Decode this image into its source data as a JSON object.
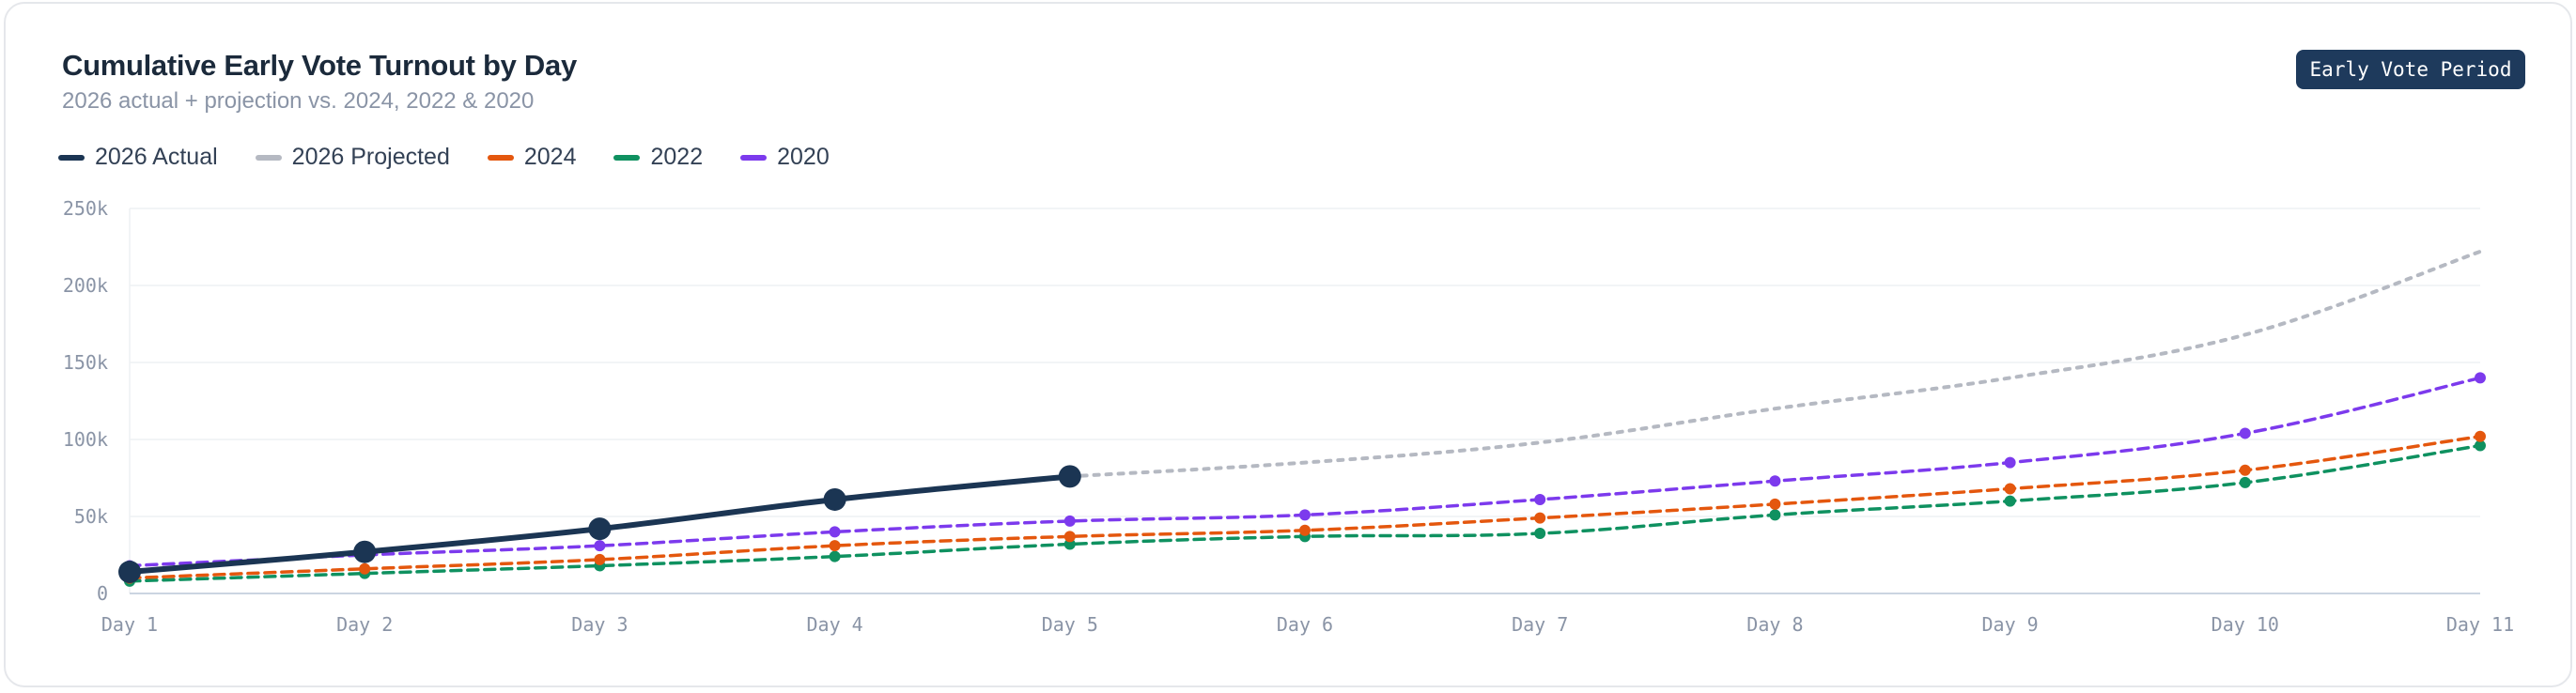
{
  "header": {
    "title": "Cumulative Early Vote Turnout by Day",
    "subtitle": "2026 actual + projection vs. 2024, 2022 & 2020",
    "badge": "Early Vote Period"
  },
  "colors": {
    "actual_2026": "#1b3553",
    "projected_2026": "#b5b9c2",
    "y2024": "#e4570e",
    "y2022": "#0f9160",
    "y2020": "#7c3aed",
    "grid": "#eef0f3",
    "axis": "#cbd5e1"
  },
  "chart_data": {
    "type": "line",
    "title": "Cumulative Early Vote Turnout by Day",
    "subtitle": "2026 actual + projection vs. 2024, 2022 & 2020",
    "categories": [
      "Day 1",
      "Day 2",
      "Day 3",
      "Day 4",
      "Day 5",
      "Day 6",
      "Day 7",
      "Day 8",
      "Day 9",
      "Day 10",
      "Day 11"
    ],
    "ylim": [
      0,
      250000
    ],
    "y_ticks": [
      {
        "value": 0,
        "label": "0"
      },
      {
        "value": 50000,
        "label": "50k"
      },
      {
        "value": 100000,
        "label": "100k"
      },
      {
        "value": 150000,
        "label": "150k"
      },
      {
        "value": 200000,
        "label": "200k"
      },
      {
        "value": 250000,
        "label": "250k"
      }
    ],
    "grid": true,
    "legend_position": "top-left",
    "series": [
      {
        "key": "actual_2026",
        "name": "2026 Actual",
        "style": "solid",
        "markers": "large",
        "values": [
          14000,
          27000,
          42000,
          61000,
          76000,
          null,
          null,
          null,
          null,
          null,
          null
        ]
      },
      {
        "key": "projected_2026",
        "name": "2026 Projected",
        "style": "dotted",
        "markers": "none",
        "values": [
          null,
          null,
          null,
          null,
          76000,
          85000,
          98000,
          120000,
          140000,
          168000,
          222000
        ]
      },
      {
        "key": "y2024",
        "name": "2024",
        "style": "dashed",
        "markers": "small",
        "values": [
          10000,
          16000,
          22000,
          31000,
          37000,
          41000,
          49000,
          58000,
          68000,
          80000,
          102000
        ]
      },
      {
        "key": "y2022",
        "name": "2022",
        "style": "dashed",
        "markers": "small",
        "values": [
          8000,
          13000,
          18000,
          24000,
          32000,
          37000,
          39000,
          51000,
          60000,
          72000,
          96000
        ]
      },
      {
        "key": "y2020",
        "name": "2020",
        "style": "dashed",
        "markers": "small",
        "values": [
          18000,
          25000,
          31000,
          40000,
          47000,
          51000,
          61000,
          73000,
          85000,
          104000,
          140000
        ]
      }
    ]
  }
}
